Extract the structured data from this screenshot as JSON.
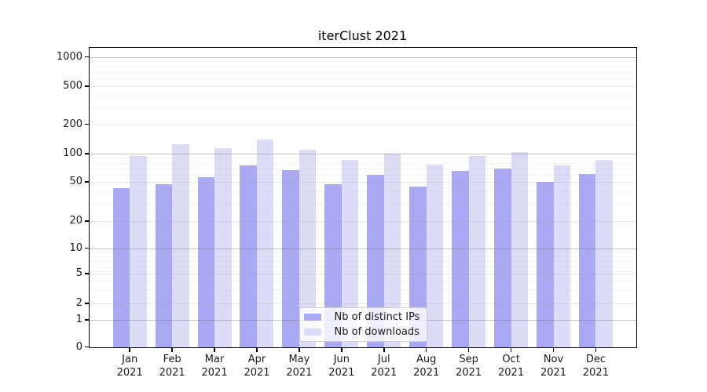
{
  "title": "iterClust 2021",
  "colors": {
    "ips_bar": "#a9a9f4",
    "downloads_bar": "#dcdcf8",
    "axis": "#000000",
    "text": "#1a1a1a"
  },
  "legend": {
    "items": [
      {
        "label": "Nb of distinct IPs",
        "series": "ips"
      },
      {
        "label": "Nb of downloads",
        "series": "downloads"
      }
    ]
  },
  "x_axis": {
    "months": [
      "Jan",
      "Feb",
      "Mar",
      "Apr",
      "May",
      "Jun",
      "Jul",
      "Aug",
      "Sep",
      "Oct",
      "Nov",
      "Dec"
    ],
    "year": "2021"
  },
  "chart_data": {
    "type": "bar",
    "title": "iterClust 2021",
    "categories": [
      "Jan 2021",
      "Feb 2021",
      "Mar 2021",
      "Apr 2021",
      "May 2021",
      "Jun 2021",
      "Jul 2021",
      "Aug 2021",
      "Sep 2021",
      "Oct 2021",
      "Nov 2021",
      "Dec 2021"
    ],
    "series": [
      {
        "name": "Nb of distinct IPs",
        "values": [
          43,
          47,
          56,
          75,
          67,
          47,
          60,
          45,
          66,
          70,
          50,
          61
        ]
      },
      {
        "name": "Nb of downloads",
        "values": [
          95,
          124,
          113,
          140,
          110,
          86,
          100,
          76,
          94,
          104,
          75,
          85
        ]
      }
    ],
    "y_axis": {
      "scale": "symlog",
      "ticks": [
        0,
        1,
        2,
        5,
        10,
        20,
        50,
        100,
        200,
        500,
        1000
      ],
      "minor_ticks": [
        3,
        4,
        6,
        7,
        8,
        9,
        30,
        40,
        60,
        70,
        80,
        90,
        300,
        400,
        600,
        700,
        800,
        900
      ],
      "range": [
        0,
        1000
      ]
    },
    "grid": true,
    "legend_position": "lower center"
  }
}
